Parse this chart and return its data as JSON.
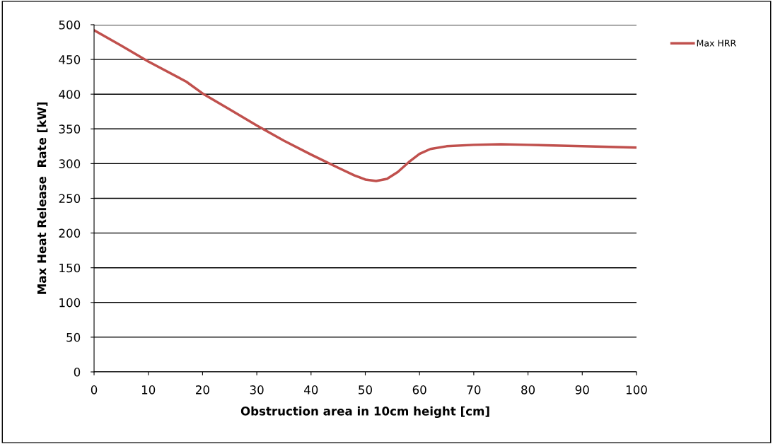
{
  "chart_data": {
    "type": "line",
    "xlabel": "Obstruction area in 10cm height [cm]",
    "ylabel": "Max Heat Release  Rate [kW]",
    "series": [
      {
        "name": "Max HRR",
        "color": "#c0504d",
        "x": [
          0,
          5,
          10,
          17,
          20,
          25,
          30,
          35,
          40,
          45,
          48,
          50,
          52,
          54,
          56,
          58,
          60,
          62,
          65,
          70,
          75,
          80,
          90,
          100
        ],
        "values": [
          492,
          470,
          447,
          418,
          401,
          378,
          355,
          333,
          313,
          294,
          283,
          277,
          275,
          278,
          288,
          302,
          314,
          321,
          325,
          327,
          328,
          327,
          325,
          323
        ]
      }
    ],
    "xlim": [
      0,
      100
    ],
    "xticks": [
      0,
      10,
      20,
      30,
      40,
      50,
      60,
      70,
      80,
      90,
      100
    ],
    "ylim": [
      0,
      500
    ],
    "yticks": [
      0,
      50,
      100,
      150,
      200,
      250,
      300,
      350,
      400,
      450,
      500
    ],
    "grid": "y",
    "legend": "right",
    "marker": "none",
    "line_style": "solid"
  }
}
